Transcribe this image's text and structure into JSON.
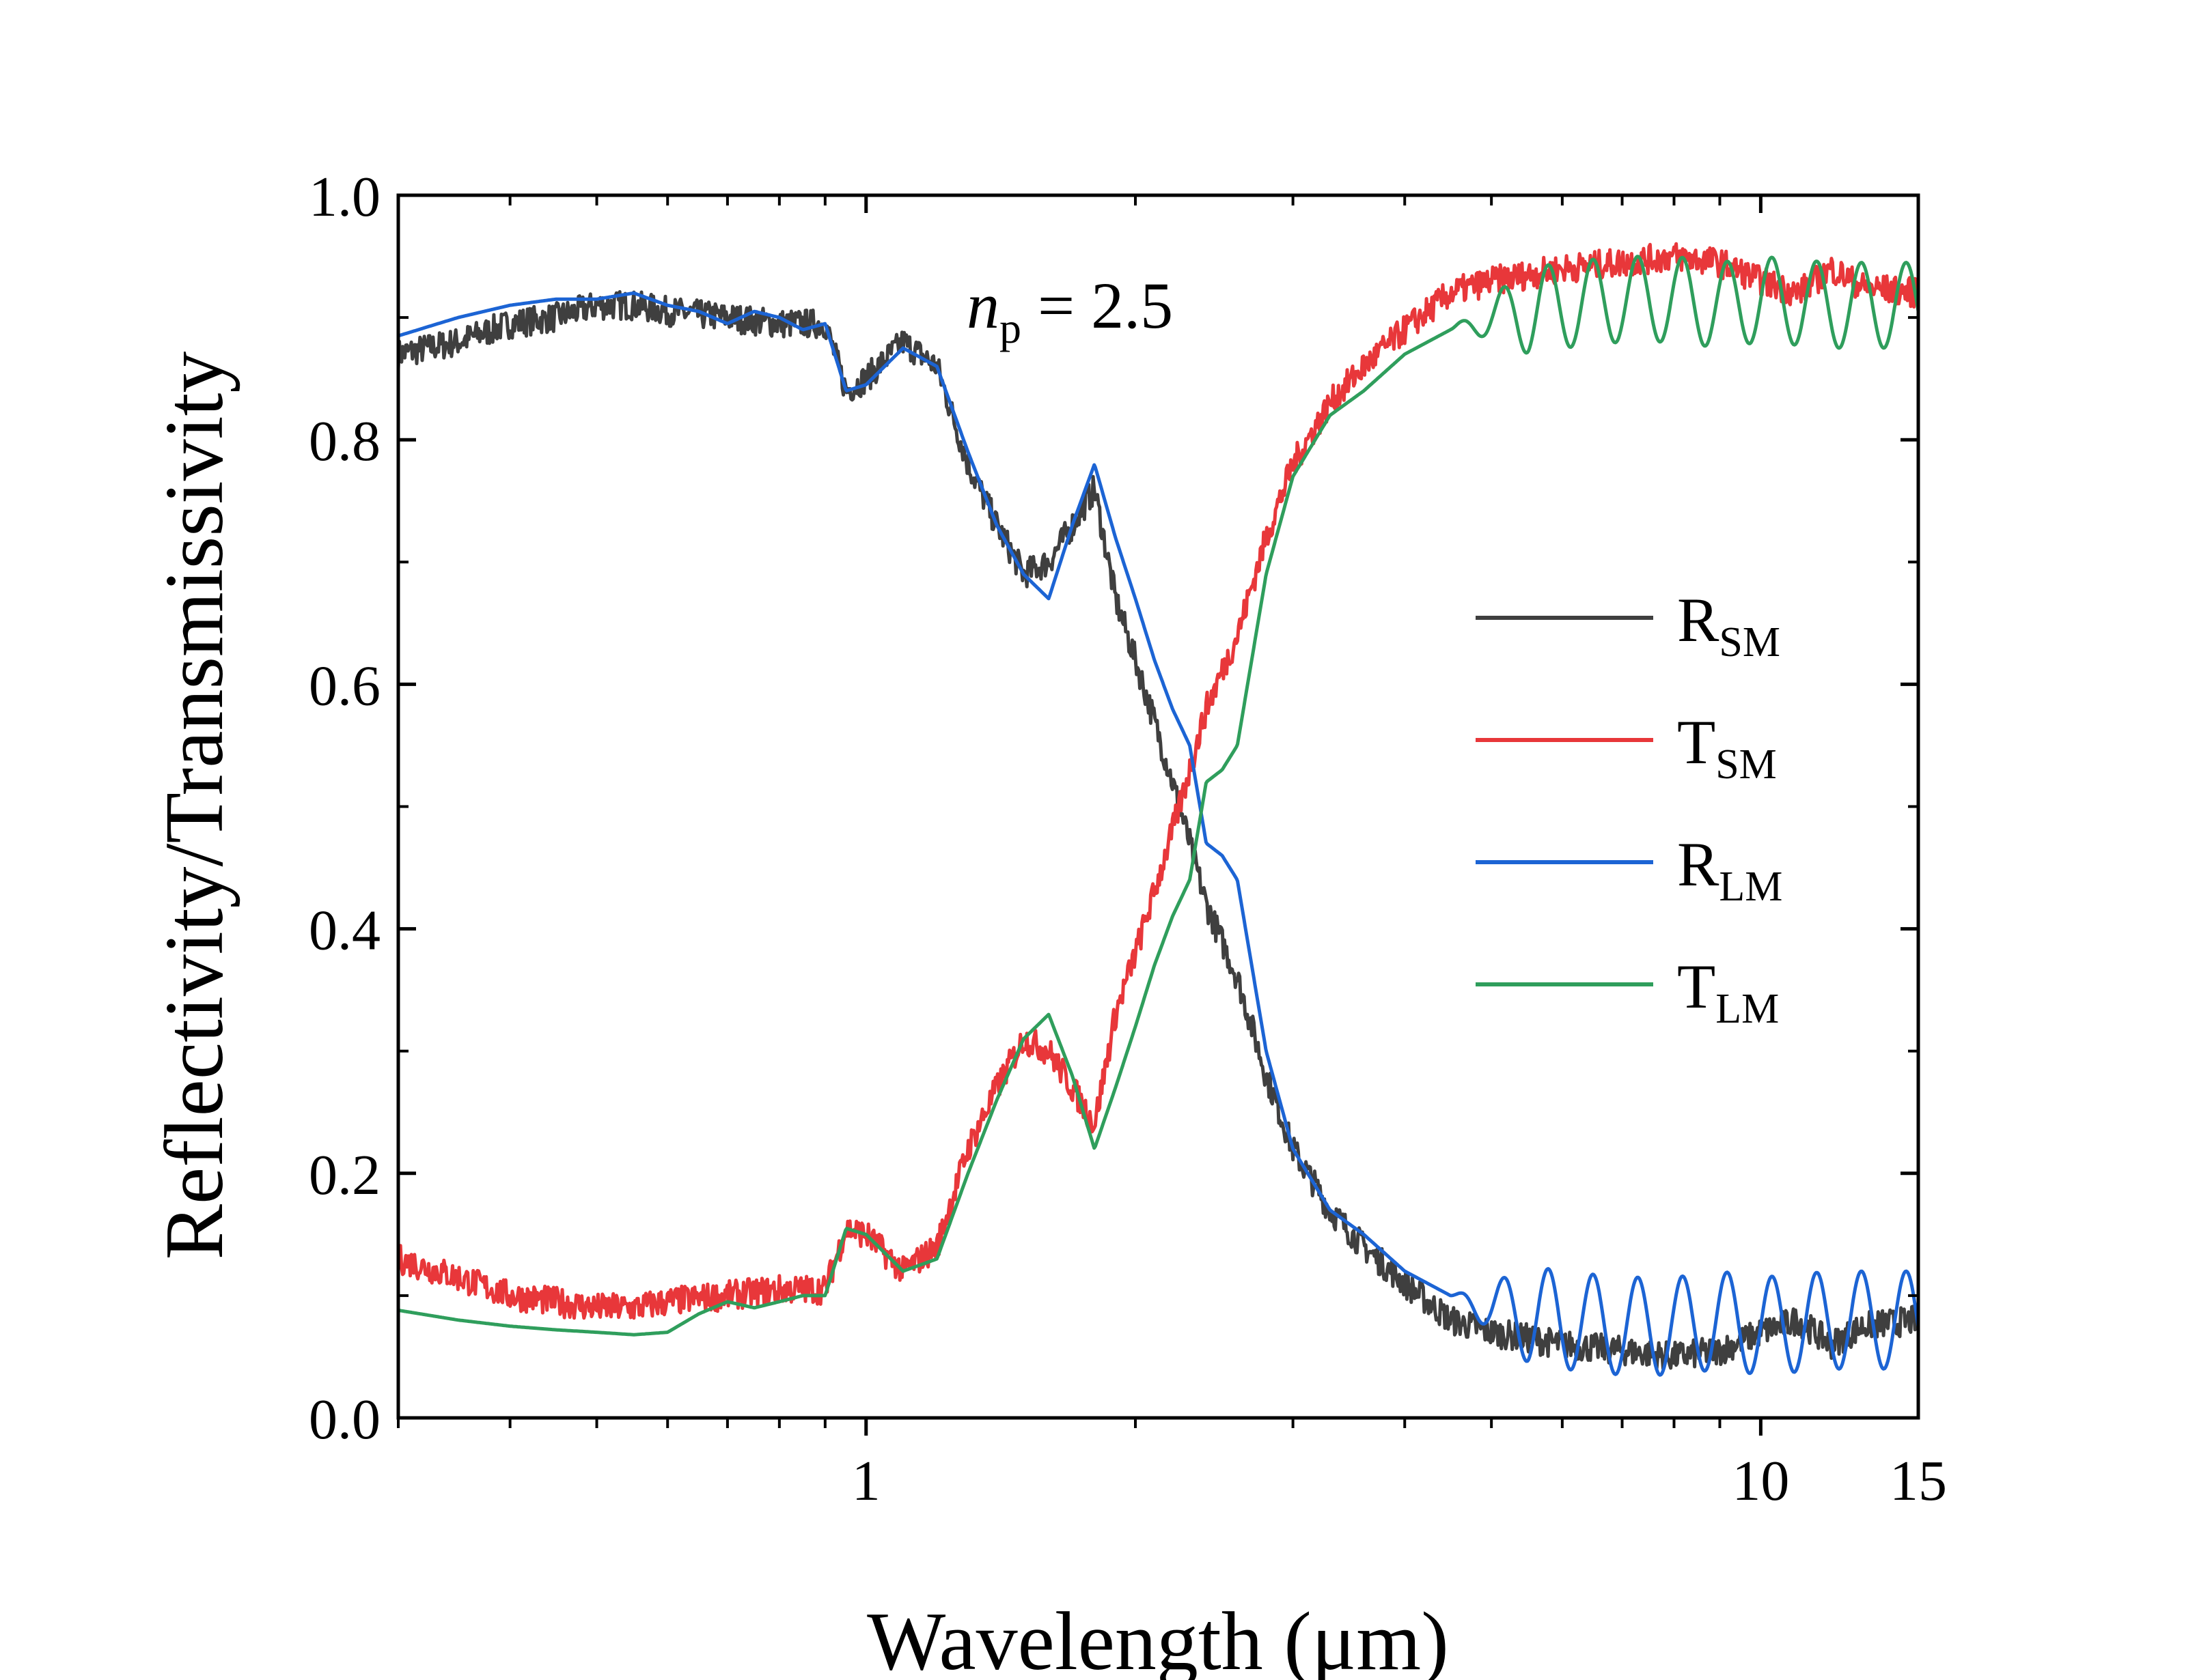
{
  "chart_data": {
    "type": "line",
    "xscale": "log",
    "xlabel": "Wavelength (μm)",
    "ylabel": "Reflectivity/Transmissivity",
    "xlim": [
      0.3,
      15
    ],
    "ylim": [
      0.0,
      1.0
    ],
    "x_ticks": [
      {
        "value": 1,
        "label": "1"
      },
      {
        "value": 10,
        "label": "10"
      },
      {
        "value": 15,
        "label": "15"
      }
    ],
    "y_ticks": [
      {
        "value": 0.0,
        "label": "0.0"
      },
      {
        "value": 0.2,
        "label": "0.2"
      },
      {
        "value": 0.4,
        "label": "0.4"
      },
      {
        "value": 0.6,
        "label": "0.6"
      },
      {
        "value": 0.8,
        "label": "0.8"
      },
      {
        "value": 1.0,
        "label": "1.0"
      }
    ],
    "annotation": {
      "var": "n",
      "sub": "p",
      "rest": " = 2.5"
    },
    "legend_position": "center-right",
    "series": [
      {
        "name": "R",
        "sub": "SM",
        "color": "#3f3f3f",
        "noise": 0.012,
        "x": [
          0.3,
          0.35,
          0.4,
          0.45,
          0.5,
          0.55,
          0.6,
          0.7,
          0.8,
          0.9,
          0.95,
          1.0,
          1.1,
          1.2,
          1.3,
          1.4,
          1.5,
          1.6,
          1.7,
          1.8,
          1.9,
          2.0,
          2.1,
          2.2,
          2.3,
          2.4,
          2.6,
          2.8,
          3.0,
          3.3,
          3.6,
          4.0,
          4.5,
          5.0,
          5.5,
          6.0,
          7.0,
          8.0,
          9.0,
          10.0,
          11.0,
          12.0,
          13.0,
          15.0
        ],
        "y": [
          0.87,
          0.88,
          0.895,
          0.9,
          0.91,
          0.91,
          0.905,
          0.9,
          0.895,
          0.895,
          0.84,
          0.85,
          0.88,
          0.86,
          0.78,
          0.73,
          0.69,
          0.7,
          0.73,
          0.76,
          0.67,
          0.62,
          0.57,
          0.52,
          0.47,
          0.42,
          0.36,
          0.28,
          0.22,
          0.17,
          0.14,
          0.11,
          0.08,
          0.07,
          0.065,
          0.06,
          0.055,
          0.05,
          0.055,
          0.07,
          0.08,
          0.06,
          0.075,
          0.08
        ]
      },
      {
        "name": "T",
        "sub": "SM",
        "color": "#e8373a",
        "noise": 0.012,
        "x": [
          0.3,
          0.35,
          0.4,
          0.45,
          0.5,
          0.55,
          0.6,
          0.7,
          0.8,
          0.9,
          0.95,
          1.0,
          1.1,
          1.2,
          1.3,
          1.4,
          1.5,
          1.6,
          1.7,
          1.8,
          1.9,
          2.0,
          2.1,
          2.2,
          2.3,
          2.4,
          2.6,
          2.8,
          3.0,
          3.3,
          3.6,
          4.0,
          4.5,
          5.0,
          5.5,
          6.0,
          7.0,
          8.0,
          9.0,
          10.0,
          11.0,
          12.0,
          13.0,
          15.0
        ],
        "y": [
          0.13,
          0.115,
          0.1,
          0.095,
          0.09,
          0.09,
          0.095,
          0.1,
          0.105,
          0.105,
          0.155,
          0.15,
          0.12,
          0.14,
          0.22,
          0.27,
          0.31,
          0.3,
          0.27,
          0.24,
          0.33,
          0.38,
          0.43,
          0.48,
          0.53,
          0.58,
          0.64,
          0.72,
          0.78,
          0.83,
          0.86,
          0.89,
          0.92,
          0.93,
          0.935,
          0.94,
          0.945,
          0.95,
          0.945,
          0.93,
          0.92,
          0.94,
          0.925,
          0.92
        ]
      },
      {
        "name": "R",
        "sub": "LM",
        "color": "#1c64d4",
        "noise": 0.0,
        "x": [
          0.3,
          0.35,
          0.4,
          0.45,
          0.5,
          0.55,
          0.6,
          0.65,
          0.7,
          0.75,
          0.8,
          0.85,
          0.9,
          0.95,
          1.0,
          1.1,
          1.2,
          1.3,
          1.4,
          1.5,
          1.6,
          1.7,
          1.8,
          1.9,
          2.0,
          2.1,
          2.2,
          2.3,
          2.4,
          2.5,
          2.6,
          2.8,
          3.0,
          3.3,
          3.6,
          4.0,
          4.5,
          5.0,
          6.0,
          7.0,
          8.0,
          9.0,
          10.0,
          12.0,
          15.0
        ],
        "y": [
          0.885,
          0.9,
          0.91,
          0.915,
          0.915,
          0.92,
          0.91,
          0.905,
          0.895,
          0.905,
          0.9,
          0.89,
          0.895,
          0.84,
          0.845,
          0.875,
          0.86,
          0.79,
          0.73,
          0.69,
          0.67,
          0.73,
          0.78,
          0.72,
          0.67,
          0.62,
          0.58,
          0.55,
          0.47,
          0.46,
          0.44,
          0.3,
          0.22,
          0.17,
          0.15,
          0.12,
          0.1,
          0.09,
          0.08,
          0.075,
          0.075,
          0.08,
          0.075,
          0.08,
          0.08
        ],
        "osc": [
          {
            "x0": 4.5,
            "amp": 0.04,
            "period": 0.05
          }
        ]
      },
      {
        "name": "T",
        "sub": "LM",
        "color": "#2f9e5c",
        "noise": 0.0,
        "x": [
          0.3,
          0.35,
          0.4,
          0.45,
          0.5,
          0.55,
          0.6,
          0.65,
          0.7,
          0.75,
          0.8,
          0.85,
          0.9,
          0.95,
          1.0,
          1.1,
          1.2,
          1.3,
          1.4,
          1.5,
          1.6,
          1.7,
          1.8,
          1.9,
          2.0,
          2.1,
          2.2,
          2.3,
          2.4,
          2.5,
          2.6,
          2.8,
          3.0,
          3.3,
          3.6,
          4.0,
          4.5,
          5.0,
          6.0,
          7.0,
          8.0,
          9.0,
          10.0,
          12.0,
          15.0
        ],
        "y": [
          0.088,
          0.08,
          0.075,
          0.072,
          0.07,
          0.068,
          0.07,
          0.085,
          0.095,
          0.09,
          0.095,
          0.1,
          0.1,
          0.155,
          0.15,
          0.12,
          0.13,
          0.2,
          0.26,
          0.31,
          0.33,
          0.28,
          0.22,
          0.27,
          0.32,
          0.37,
          0.41,
          0.44,
          0.52,
          0.53,
          0.55,
          0.69,
          0.77,
          0.82,
          0.84,
          0.87,
          0.89,
          0.9,
          0.91,
          0.915,
          0.915,
          0.91,
          0.915,
          0.91,
          0.91
        ],
        "osc": [
          {
            "x0": 4.5,
            "amp": 0.035,
            "period": 0.05
          }
        ]
      }
    ]
  }
}
